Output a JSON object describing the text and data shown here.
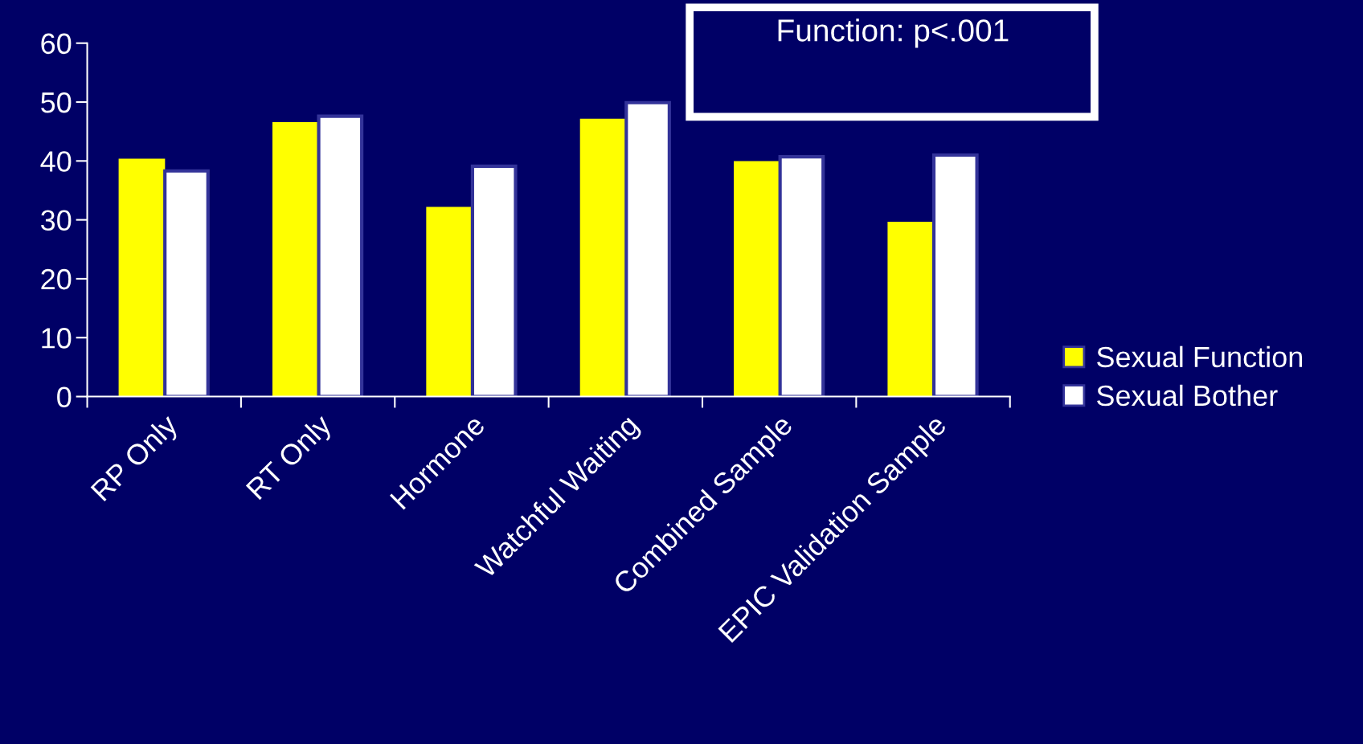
{
  "chart_data": {
    "type": "bar",
    "categories": [
      "RP Only",
      "RT Only",
      "Hormone",
      "Watchful Waiting",
      "Combined Sample",
      "EPIC Validation Sample"
    ],
    "series": [
      {
        "name": "Sexual Function",
        "color": "#ffff00",
        "values": [
          40.1,
          46.3,
          31.9,
          46.9,
          39.7,
          29.4
        ]
      },
      {
        "name": "Sexual Bother",
        "color": "#ffffff",
        "values": [
          38.3,
          47.6,
          39.1,
          49.9,
          40.7,
          41.0
        ]
      }
    ],
    "ylim": [
      0,
      60
    ],
    "yticks": [
      0,
      10,
      20,
      30,
      40,
      50,
      60
    ],
    "annotations": [
      "Function: p<.001"
    ],
    "legend": "right",
    "grid": false
  }
}
